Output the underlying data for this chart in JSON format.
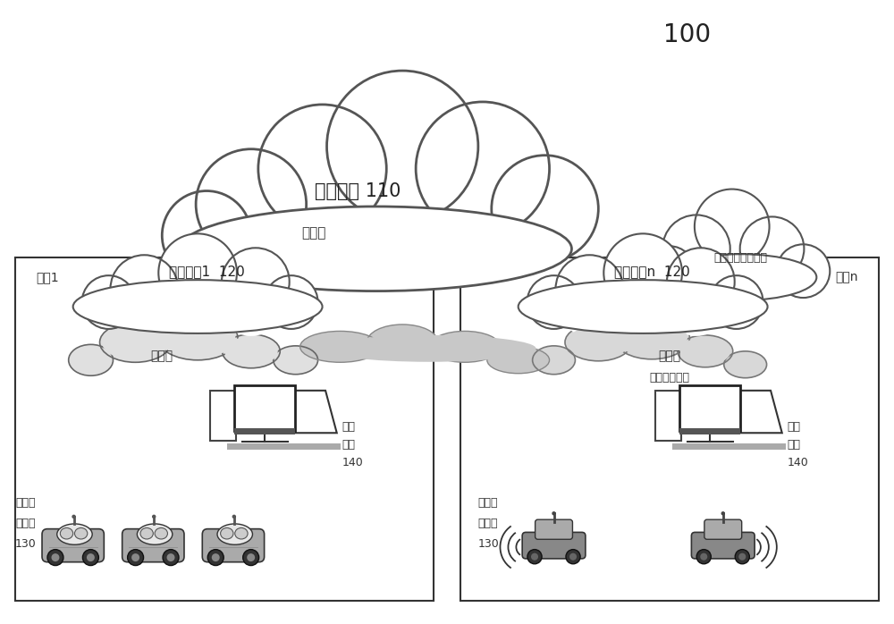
{
  "bg_color": "#ffffff",
  "title_100": "100",
  "main_cloud_label": "总控平台 110",
  "public_cloud_label": "公有云",
  "third_party_label": "第三方服务提供商",
  "zone1_label": "园区1",
  "zone1_sub": "分控平台1  120",
  "zone1_private": "私有云",
  "zone1_terminal_1": "终端",
  "zone1_terminal_2": "应用",
  "zone1_terminal_3": "140",
  "zone1_vehicle_1": "车载软",
  "zone1_vehicle_2": "件模块",
  "zone1_vehicle_3": "130",
  "zonen_label": "园区n",
  "zonen_sub": "分控平台n  120",
  "zonen_private_1": "私有云",
  "zonen_private_2": "（或公有云）",
  "zonen_terminal_1": "终端",
  "zonen_terminal_2": "应用",
  "zonen_terminal_3": "140",
  "zonen_vehicle_1": "车载软",
  "zonen_vehicle_2": "件模块",
  "zonen_vehicle_3": "130",
  "edge_color": "#333333",
  "cloud_edge": "#555555",
  "private_cloud_color": "#d8d8d8",
  "private_cloud_edge": "#666666"
}
